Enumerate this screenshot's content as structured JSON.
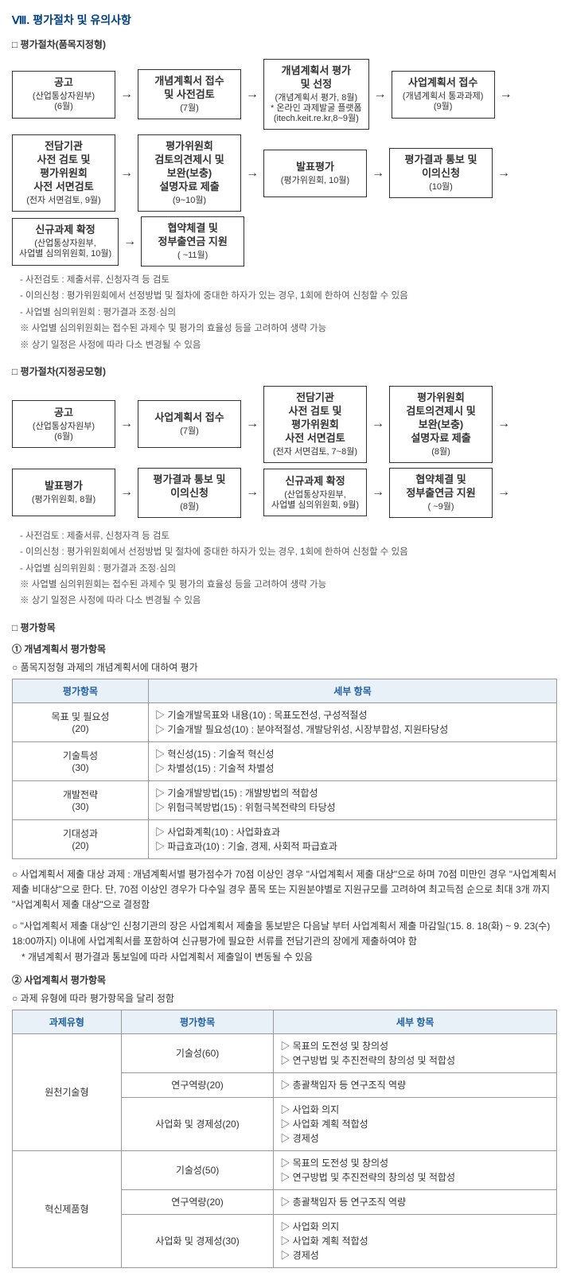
{
  "title": "Ⅷ. 평가절차 및 유의사항",
  "proc1": {
    "title": "평가절차(품목지정형)",
    "boxes": [
      {
        "main": "공고",
        "sub": "(산업통상자원부)\n(6월)"
      },
      {
        "main": "개념계획서 접수\n및 사전검토",
        "sub": "(7월)"
      },
      {
        "main": "개념계획서 평가\n및 선정",
        "sub": "(개념계획서 평가, 8월)\n* 온라인 과제발굴 플랫폼\n(itech.keit.re.kr,8~9월)"
      },
      {
        "main": "사업계획서 접수",
        "sub": "(개념계획서 통과과제)\n(9월)"
      },
      {
        "main": "전담기관\n사전 검토 및\n평가위원회\n사전 서면검토",
        "sub": "(전자 서면검토, 9월)"
      },
      {
        "main": "평가위원회\n검토의견제시 및\n보완(보충)\n설명자료 제출",
        "sub": "(9~10월)"
      },
      {
        "main": "발표평가",
        "sub": "(평가위원회, 10월)"
      },
      {
        "main": "평가결과 통보 및\n이의신청",
        "sub": "(10월)"
      },
      {
        "main": "신규과제 확정",
        "sub": "(산업통상자원부,\n사업별 심의위원회, 10월)"
      },
      {
        "main": "협약체결 및\n정부출연금 지원",
        "sub": "( ~11월)"
      }
    ],
    "notes": [
      "- 사전검토 : 제출서류, 신청자격 등 검토",
      "- 이의신청 : 평가위원회에서 선정방법 및 절차에 중대한 하자가 있는 경우, 1회에 한하여 신청할 수 있음",
      "- 사업별 심의위원회 : 평가결과 조정·심의",
      "※ 사업별 심의위원회는 접수된 과제수 및 평가의 효율성 등을 고려하여 생략 가능",
      "※ 상기 일정은 사정에 따라 다소 변경될 수 있음"
    ]
  },
  "proc2": {
    "title": "평가절차(지정공모형)",
    "boxes": [
      {
        "main": "공고",
        "sub": "(산업통상자원부)\n(6월)"
      },
      {
        "main": "사업계획서 접수",
        "sub": "(7월)"
      },
      {
        "main": "전담기관\n사전 검토 및\n평가위원회\n사전 서면검토",
        "sub": "(전자 서면검토, 7~8월)"
      },
      {
        "main": "평가위원회\n검토의견제시 및\n보완(보충)\n설명자료 제출",
        "sub": "(8월)"
      },
      {
        "main": "발표평가",
        "sub": "(평가위원회, 8월)"
      },
      {
        "main": "평가결과 통보 및\n이의신청",
        "sub": "(8월)"
      },
      {
        "main": "신규과제 확정",
        "sub": "(산업통상자원부,\n사업별 심의위원회, 9월)"
      },
      {
        "main": "협약체결 및\n정부출연금 지원",
        "sub": "( ~9월)"
      }
    ],
    "notes": [
      "- 사전검토 : 제출서류, 신청자격 등 검토",
      "- 이의신청 : 평가위원회에서 선정방법 및 절차에 중대한 하자가 있는 경우, 1회에 한하여 신청할 수 있음",
      "- 사업별 심의위원회 : 평가결과 조정·심의",
      "※ 사업별 심의위원회는 접수된 과제수 및 평가의 효율성 등을 고려하여 생략 가능",
      "※ 상기 일정은 사정에 따라 다소 변경될 수 있음"
    ]
  },
  "evalItems": {
    "title": "평가항목",
    "sub1": {
      "title": "① 개념계획서 평가항목",
      "note": "품목지정형 과제의 개념계획서에 대하여 평가",
      "headers": [
        "평가항목",
        "세부 항목"
      ],
      "rows": [
        {
          "name": "목표 및 필요성\n(20)",
          "items": [
            "기술개발목표와 내용(10) : 목표도전성, 구성적절성",
            "기술개발 필요성(10) : 분야적절성, 개발당위성, 시장부합성, 지원타당성"
          ]
        },
        {
          "name": "기술특성\n(30)",
          "items": [
            "혁신성(15) : 기술적 혁신성",
            "차별성(15) : 기술적 차별성"
          ]
        },
        {
          "name": "개발전략\n(30)",
          "items": [
            "기술개발방법(15) : 개발방법의 적합성",
            "위험극복방법(15) : 위험극복전략의 타당성"
          ]
        },
        {
          "name": "기대성과\n(20)",
          "items": [
            "사업화계획(10) : 사업화효과",
            "파급효과(10) : 기술, 경제, 사회적 파급효과"
          ]
        }
      ],
      "para1": "○ 사업계획서 제출 대상 과제 : 개념계획서별 평가점수가 70점 이상인 경우 \"사업계획서 제출 대상\"으로 하며 70점 미만인 경우 \"사업계획서 제출 비대상\"으로 한다. 단, 70점 이상인 경우가 다수일 경우 품목 또는 지원분야별로 지원규모를 고려하여 최고득점 순으로 최대 3개 까지 \"사업계획서 제출 대상\"으로 결정함",
      "para2": "○ \"사업계획서 제출 대상\"인 신청기관의 장은 사업계획서 제출을 통보받은 다음날 부터 사업계획서 제출 마감일('15. 8. 18(화) ~ 9. 23(수) 18:00까지) 이내에 사업계획서를 포함하여 신규평가에 필요한 서류를 전담기관의 장에게 제출하여야 함",
      "para2sub": "* 개념계획서 평가결과 통보일에 따라 사업계획서 제출일이 변동될 수 있음"
    },
    "sub2": {
      "title": "② 사업계획서 평가항목",
      "note": "과제 유형에 따라 평가항목을 달리 정함",
      "headers": [
        "과제유형",
        "평가항목",
        "세부 항목"
      ],
      "groups": [
        {
          "type": "원천기술형",
          "rows": [
            {
              "item": "기술성(60)",
              "details": [
                "목표의 도전성 및 창의성",
                "연구방법 및 추진전략의 창의성 및 적합성"
              ]
            },
            {
              "item": "연구역량(20)",
              "details": [
                "총괄책임자 등 연구조직 역량"
              ]
            },
            {
              "item": "사업화 및 경제성(20)",
              "details": [
                "사업화 의지",
                "사업화 계획 적합성",
                "경제성"
              ]
            }
          ]
        },
        {
          "type": "혁신제품형",
          "rows": [
            {
              "item": "기술성(50)",
              "details": [
                "목표의 도전성 및 창의성",
                "연구방법 및 추진전략의 창의성 및 적합성"
              ]
            },
            {
              "item": "연구역량(20)",
              "details": [
                "총괄책임자 등 연구조직 역량"
              ]
            },
            {
              "item": "사업화 및 경제성(30)",
              "details": [
                "사업화 의지",
                "사업화 계획 적합성",
                "경제성"
              ]
            }
          ]
        }
      ]
    }
  }
}
